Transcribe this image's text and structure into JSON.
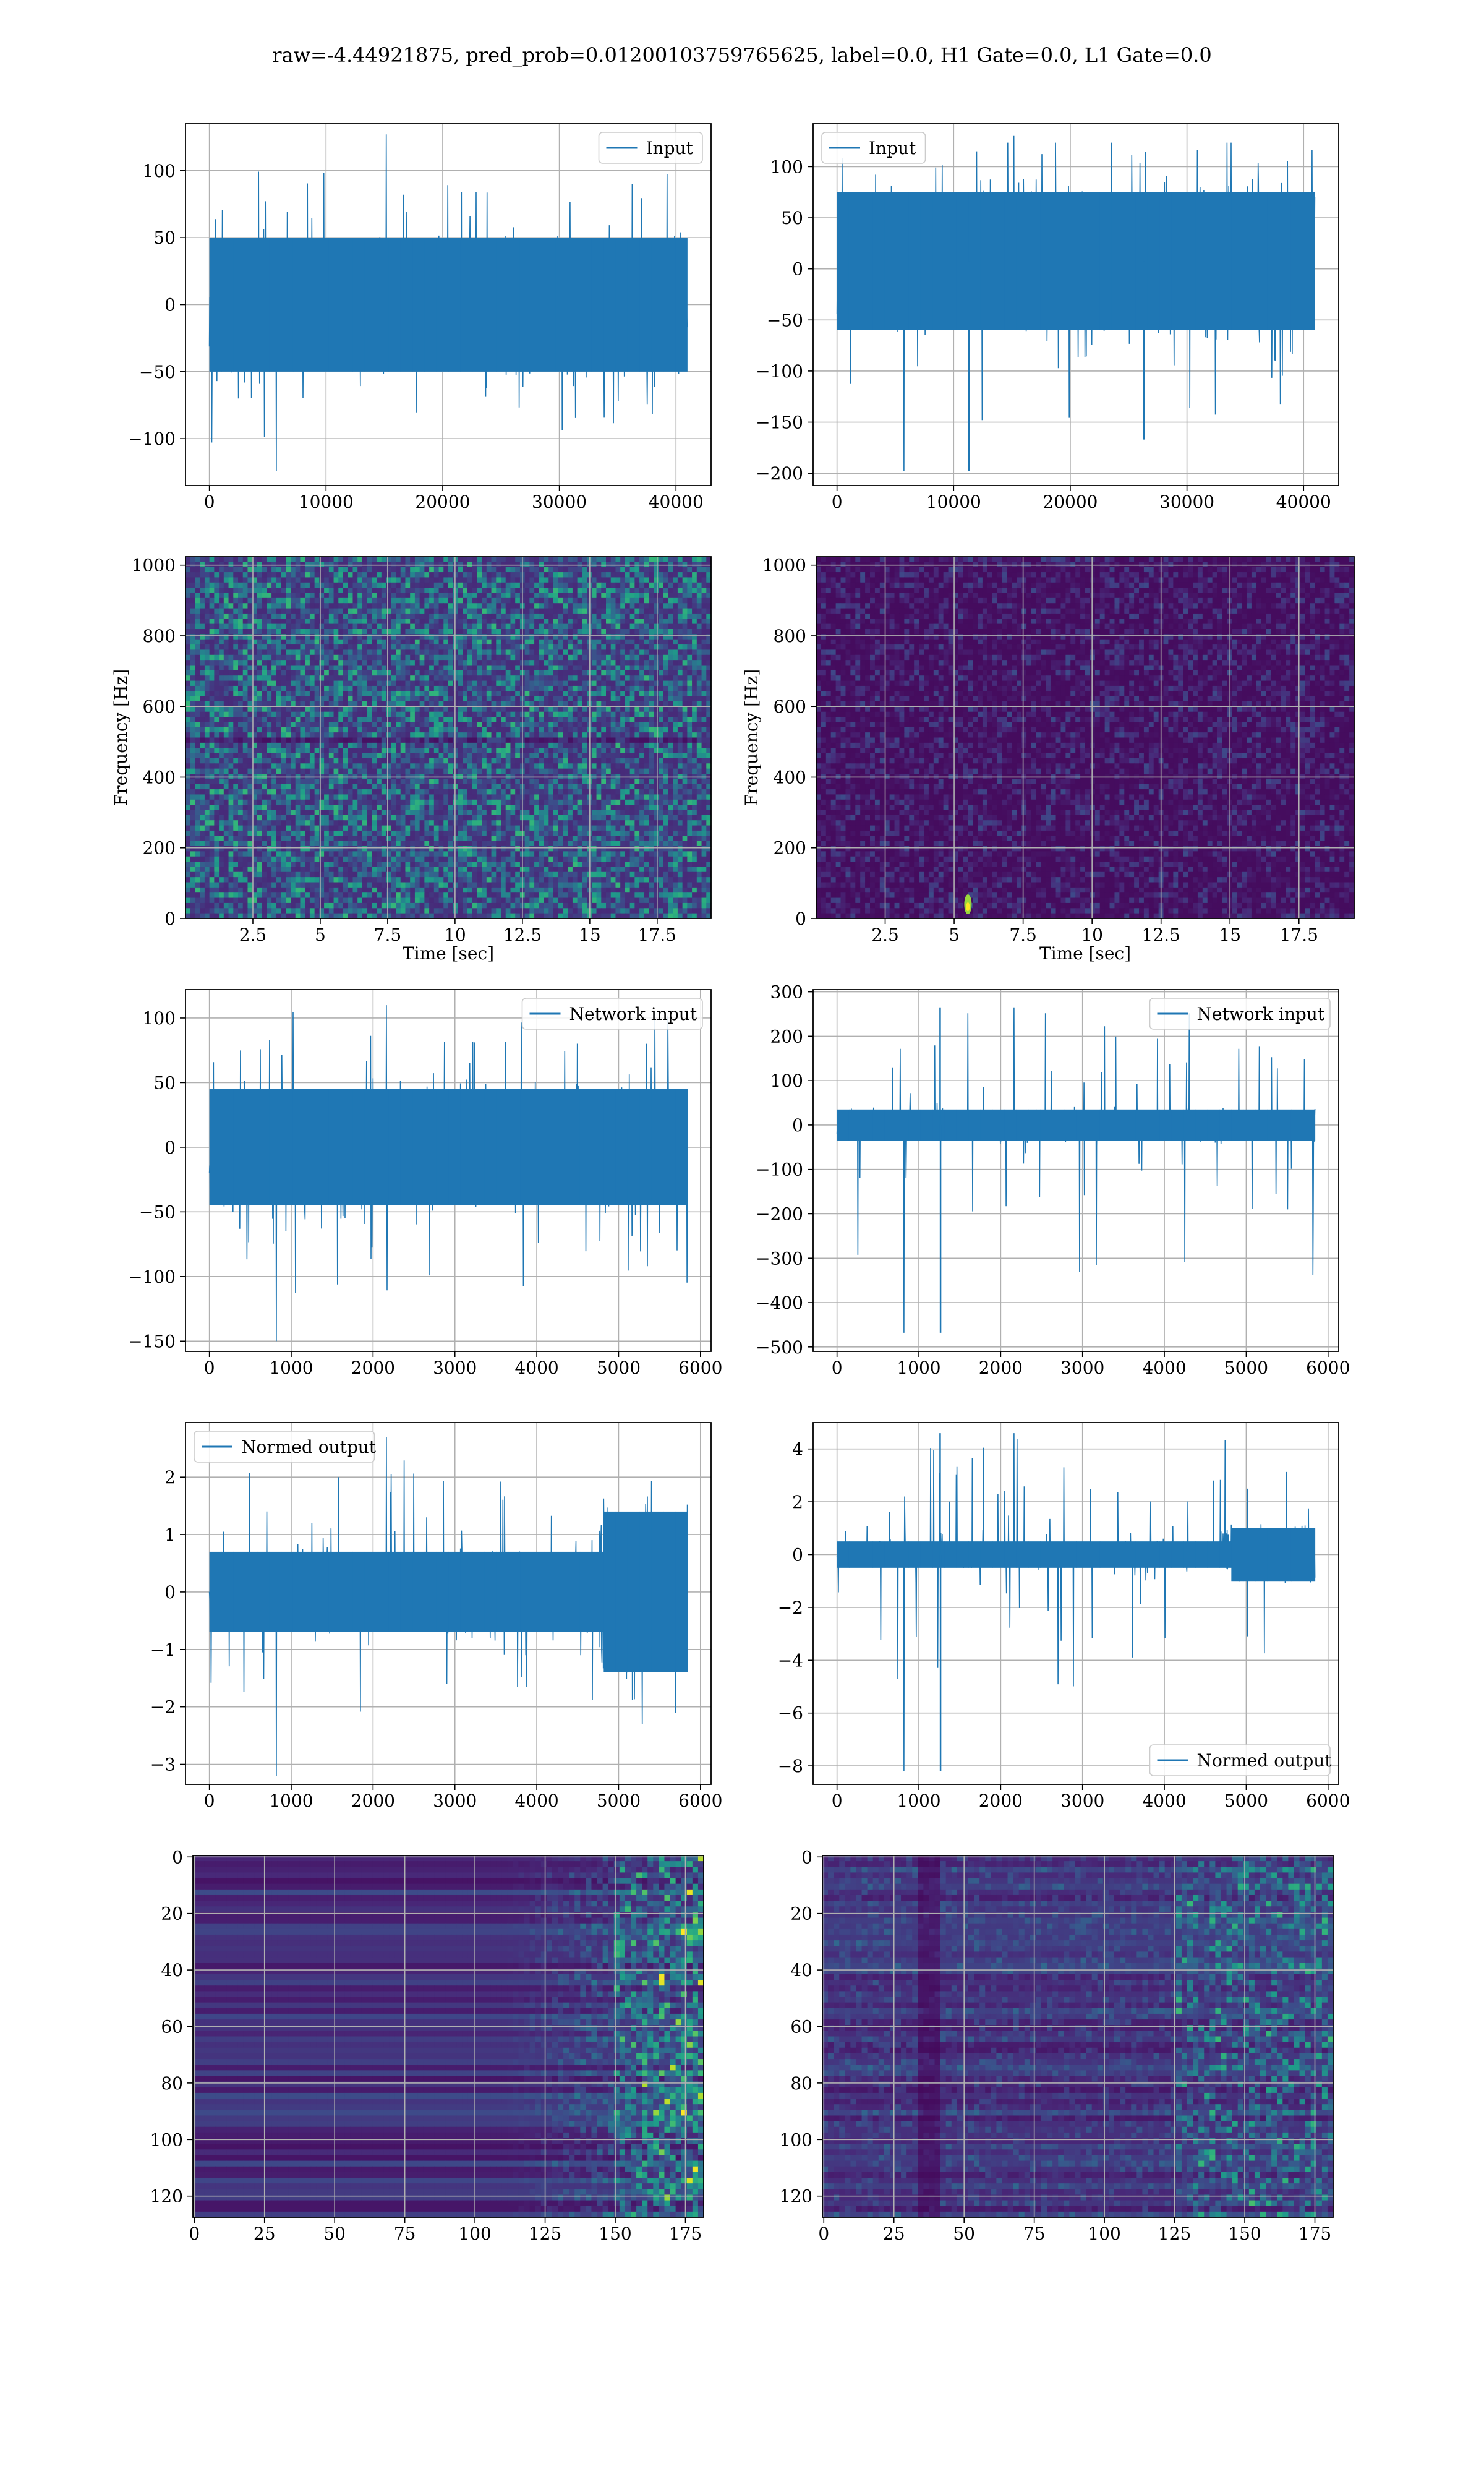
{
  "figure": {
    "title": "raw=-4.44921875, pred_prob=0.01200103759765625, label=0.0, H1 Gate=0.0, L1 Gate=0.0",
    "line_color": "#1f77b4",
    "grid_color": "#b0b0b0"
  },
  "chart_data": [
    {
      "id": "input-h1",
      "type": "line",
      "legend": "Input",
      "legend_loc": "upper right",
      "xlim": [
        -2048,
        43008
      ],
      "ylim": [
        -135,
        135
      ],
      "xticks": [
        0,
        10000,
        20000,
        30000,
        40000
      ],
      "yticks": [
        -100,
        -50,
        0,
        50,
        100
      ],
      "xlabel": "",
      "ylabel": "",
      "series": [
        {
          "name": "Input",
          "n": 40960,
          "envelope": {
            "core": [
              -50,
              50
            ],
            "peak_max": 127,
            "peak_min": -124
          }
        }
      ]
    },
    {
      "id": "input-l1",
      "type": "line",
      "legend": "Input",
      "legend_loc": "upper left",
      "xlim": [
        -2048,
        43008
      ],
      "ylim": [
        -212,
        142
      ],
      "xticks": [
        0,
        10000,
        20000,
        30000,
        40000
      ],
      "yticks": [
        -200,
        -150,
        -100,
        -50,
        0,
        50,
        100
      ],
      "xlabel": "",
      "ylabel": "",
      "series": [
        {
          "name": "Input",
          "n": 40960,
          "envelope": {
            "core": [
              -60,
              75
            ],
            "peak_max": 130,
            "peak_min": -198
          },
          "spikes": [
            {
              "x": 11300,
              "y": -198
            },
            {
              "x": 26300,
              "y": -167
            }
          ]
        }
      ]
    },
    {
      "id": "spec-h1",
      "type": "heatmap",
      "colormap": "viridis",
      "xlim": [
        0,
        19.5
      ],
      "ylim": [
        0,
        1024
      ],
      "xticks": [
        2.5,
        5.0,
        7.5,
        10.0,
        12.5,
        15.0,
        17.5
      ],
      "yticks": [
        0,
        200,
        400,
        600,
        800,
        1000
      ],
      "xlabel": "Time [sec]",
      "ylabel": "Frequency [Hz]",
      "level": "bright-noise"
    },
    {
      "id": "spec-l1",
      "type": "heatmap",
      "colormap": "viridis",
      "xlim": [
        0,
        19.5
      ],
      "ylim": [
        0,
        1024
      ],
      "xticks": [
        2.5,
        5.0,
        7.5,
        10.0,
        12.5,
        15.0,
        17.5
      ],
      "yticks": [
        0,
        200,
        400,
        600,
        800,
        1000
      ],
      "xlabel": "Time [sec]",
      "ylabel": "Frequency [Hz]",
      "level": "dark",
      "hotspot": {
        "t": 5.5,
        "f": 40
      }
    },
    {
      "id": "net-h1",
      "type": "line",
      "legend": "Network input",
      "legend_loc": "upper right",
      "xlim": [
        -292,
        6130
      ],
      "ylim": [
        -158,
        122
      ],
      "xticks": [
        0,
        1000,
        2000,
        3000,
        4000,
        5000,
        6000
      ],
      "yticks": [
        -150,
        -100,
        -50,
        0,
        50,
        100
      ],
      "xlabel": "",
      "ylabel": "",
      "series": [
        {
          "name": "Network input",
          "n": 5840,
          "envelope": {
            "core": [
              -45,
              45
            ],
            "peak_max": 110,
            "peak_min": -150
          }
        }
      ]
    },
    {
      "id": "net-l1",
      "type": "line",
      "legend": "Network input",
      "legend_loc": "upper right",
      "xlim": [
        -292,
        6130
      ],
      "ylim": [
        -510,
        305
      ],
      "xticks": [
        0,
        1000,
        2000,
        3000,
        4000,
        5000,
        6000
      ],
      "yticks": [
        -500,
        -400,
        -300,
        -200,
        -100,
        0,
        100,
        200,
        300
      ],
      "xlabel": "",
      "ylabel": "",
      "series": [
        {
          "name": "Network input",
          "n": 5840,
          "envelope": {
            "core": [
              -35,
              35
            ],
            "peak_max": 265,
            "peak_min": -468
          },
          "spikes": [
            {
              "x": 1260,
              "y": 265
            },
            {
              "x": 1265,
              "y": -468
            }
          ]
        }
      ]
    },
    {
      "id": "norm-h1",
      "type": "line",
      "legend": "Normed output",
      "legend_loc": "upper left",
      "xlim": [
        -292,
        6130
      ],
      "ylim": [
        -3.35,
        2.95
      ],
      "xticks": [
        0,
        1000,
        2000,
        3000,
        4000,
        5000,
        6000
      ],
      "yticks": [
        -3,
        -2,
        -1,
        0,
        1,
        2
      ],
      "xlabel": "",
      "ylabel": "",
      "series": [
        {
          "name": "Normed output",
          "n": 5840,
          "envelope": {
            "core": [
              -0.7,
              0.7
            ],
            "peak_max": 2.7,
            "peak_min": -3.2,
            "loud_from": 4750
          }
        }
      ]
    },
    {
      "id": "norm-l1",
      "type": "line",
      "legend": "Normed output",
      "legend_loc": "lower right",
      "xlim": [
        -292,
        6130
      ],
      "ylim": [
        -8.7,
        5.0
      ],
      "xticks": [
        0,
        1000,
        2000,
        3000,
        4000,
        5000,
        6000
      ],
      "yticks": [
        -8,
        -6,
        -4,
        -2,
        0,
        2,
        4
      ],
      "xlabel": "",
      "ylabel": "",
      "series": [
        {
          "name": "Normed output",
          "n": 5840,
          "envelope": {
            "core": [
              -0.5,
              0.5
            ],
            "peak_max": 4.6,
            "peak_min": -8.2,
            "loud_from": 4700
          },
          "spikes": [
            {
              "x": 1260,
              "y": 4.6
            },
            {
              "x": 1265,
              "y": -8.2
            }
          ]
        }
      ]
    },
    {
      "id": "feat-h1",
      "type": "heatmap",
      "colormap": "viridis",
      "xlim": [
        -0.5,
        181.5
      ],
      "ylim": [
        127.5,
        -0.5
      ],
      "xticks": [
        0,
        25,
        50,
        75,
        100,
        125,
        150,
        175
      ],
      "yticks": [
        0,
        20,
        40,
        60,
        80,
        100,
        120
      ],
      "xlabel": "",
      "ylabel": "",
      "rows": 128,
      "cols": 182,
      "pattern": "rows-bright-right"
    },
    {
      "id": "feat-l1",
      "type": "heatmap",
      "colormap": "viridis",
      "xlim": [
        -0.5,
        181.5
      ],
      "ylim": [
        127.5,
        -0.5
      ],
      "xticks": [
        0,
        25,
        50,
        75,
        100,
        125,
        150,
        175
      ],
      "yticks": [
        0,
        20,
        40,
        60,
        80,
        100,
        120
      ],
      "xlabel": "",
      "ylabel": "",
      "rows": 128,
      "cols": 182,
      "pattern": "dark-vertical-band",
      "band_col": 38
    }
  ]
}
